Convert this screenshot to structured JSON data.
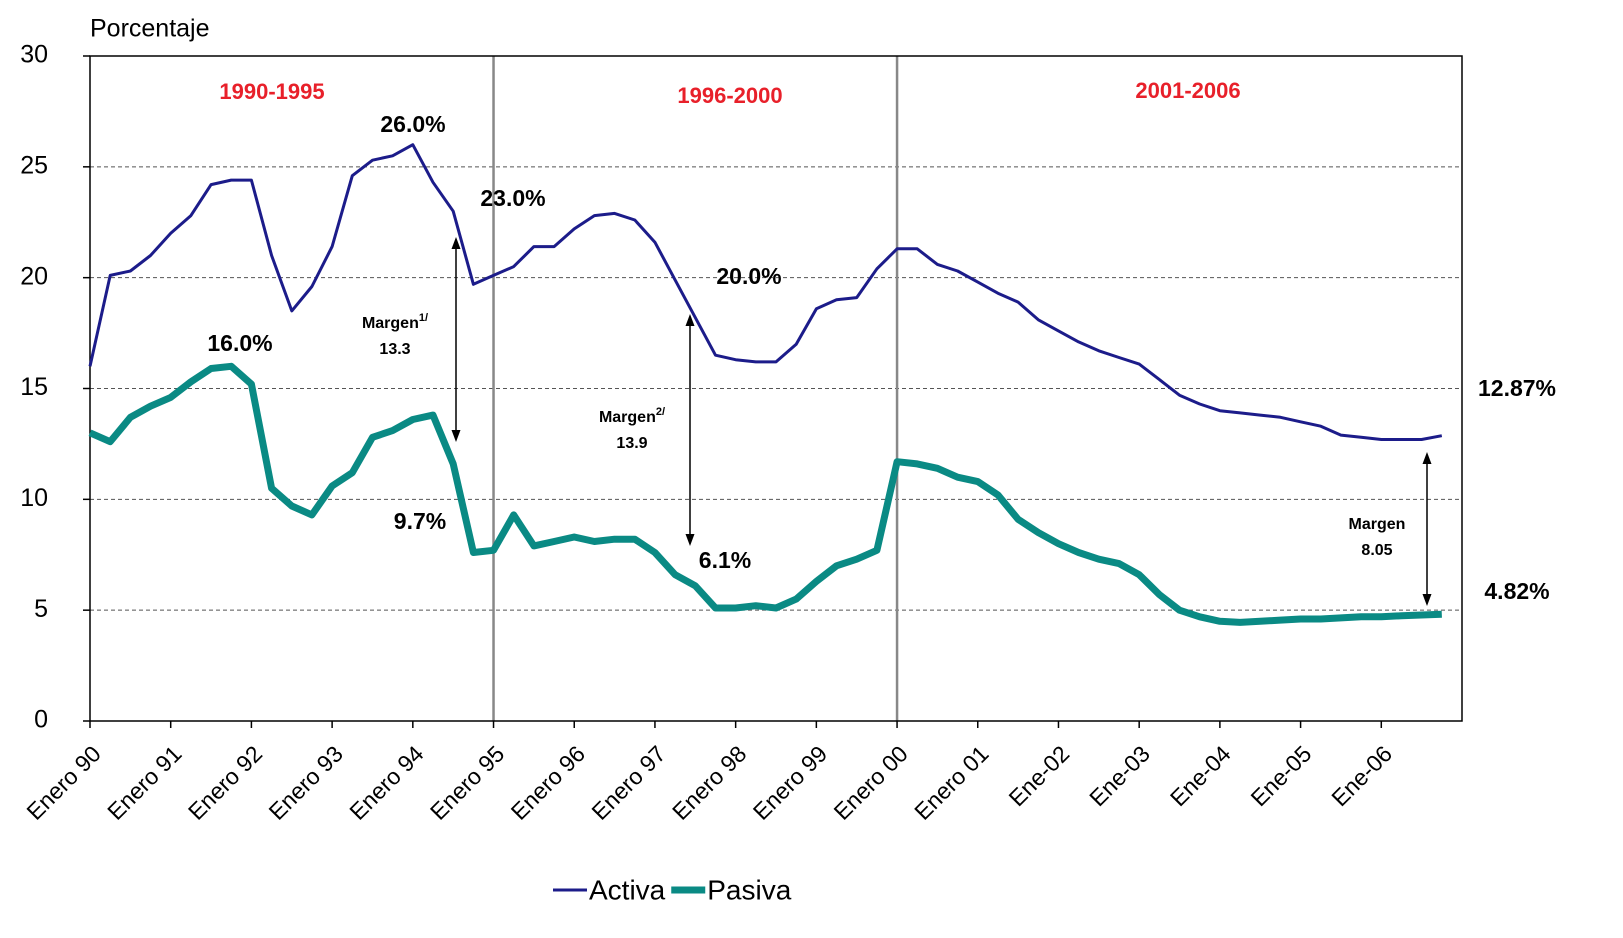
{
  "chart_data": {
    "type": "line",
    "y_label": "Porcentaje",
    "categories": [
      "Enero 90",
      null,
      null,
      null,
      "Enero 91",
      null,
      null,
      null,
      "Enero 92",
      null,
      null,
      null,
      "Enero 93",
      null,
      null,
      null,
      "Enero 94",
      null,
      null,
      null,
      "Enero 95",
      null,
      null,
      null,
      "Enero 96",
      null,
      null,
      null,
      "Enero 97",
      null,
      null,
      null,
      "Enero 98",
      null,
      null,
      null,
      "Enero 99",
      null,
      null,
      null,
      "Enero 00",
      null,
      null,
      null,
      "Enero 01",
      null,
      null,
      null,
      "Ene-02",
      null,
      null,
      null,
      "Ene-03",
      null,
      null,
      null,
      "Ene-04",
      null,
      null,
      null,
      "Ene-05",
      null,
      null,
      null,
      "Ene-06",
      null,
      null,
      null
    ],
    "series": [
      {
        "name": "Activa",
        "color": "#1c1c8a",
        "values": [
          16.0,
          20.1,
          20.3,
          21.0,
          22.0,
          22.8,
          24.2,
          24.4,
          24.4,
          21.0,
          18.5,
          19.6,
          21.4,
          24.6,
          25.3,
          25.5,
          26.0,
          24.3,
          23.0,
          19.7,
          20.1,
          20.5,
          21.4,
          21.4,
          22.2,
          22.8,
          22.9,
          22.6,
          21.6,
          19.9,
          18.2,
          16.5,
          16.3,
          16.2,
          16.2,
          17.0,
          18.6,
          19.0,
          19.1,
          20.4,
          21.3,
          21.3,
          20.6,
          20.3,
          19.8,
          19.3,
          18.9,
          18.1,
          17.6,
          17.1,
          16.7,
          16.4,
          16.1,
          15.4,
          14.7,
          14.3,
          14.0,
          13.9,
          13.8,
          13.7,
          13.5,
          13.3,
          12.9,
          12.8,
          12.7,
          12.7,
          12.7,
          12.87
        ]
      },
      {
        "name": "Pasiva",
        "color": "#0a8a84",
        "values": [
          13.0,
          12.6,
          13.7,
          14.2,
          14.6,
          15.3,
          15.9,
          16.0,
          15.2,
          10.5,
          9.7,
          9.3,
          10.6,
          11.2,
          12.8,
          13.1,
          13.6,
          13.8,
          11.6,
          7.6,
          7.7,
          9.3,
          7.9,
          8.1,
          8.3,
          8.1,
          8.2,
          8.2,
          7.6,
          6.6,
          6.1,
          5.1,
          5.1,
          5.2,
          5.1,
          5.5,
          6.3,
          7.0,
          7.3,
          7.7,
          11.7,
          11.6,
          11.4,
          11.0,
          10.8,
          10.2,
          9.1,
          8.5,
          8.0,
          7.6,
          7.3,
          7.1,
          6.6,
          5.7,
          5.0,
          4.7,
          4.5,
          4.45,
          4.5,
          4.55,
          4.6,
          4.6,
          4.65,
          4.7,
          4.7,
          4.75,
          4.78,
          4.82
        ]
      }
    ],
    "ylim": [
      0,
      30
    ],
    "yticks": [
      0,
      5,
      10,
      15,
      20,
      25,
      30
    ],
    "grid": true,
    "periods": [
      "1990-1995",
      "1996-2000",
      "2001-2006"
    ],
    "annotations": [
      "26.0%",
      "23.0%",
      "20.0%",
      "16.0%",
      "9.7%",
      "6.1%",
      "12.87%",
      "4.82%"
    ],
    "margins": [
      {
        "label": "Margen",
        "note": "1/",
        "value": "13.3"
      },
      {
        "label": "Margen",
        "note": "2/",
        "value": "13.9"
      },
      {
        "label": "Margen",
        "value": "8.05"
      }
    ],
    "legend": "bottom"
  }
}
